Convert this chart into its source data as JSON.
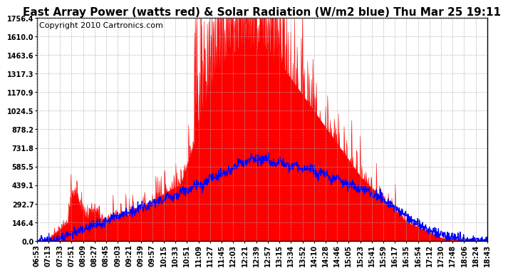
{
  "title": "East Array Power (watts red) & Solar Radiation (W/m2 blue) Thu Mar 25 19:11",
  "copyright": "Copyright 2010 Cartronics.com",
  "background_color": "#ffffff",
  "plot_bg_color": "#ffffff",
  "grid_color": "#aaaaaa",
  "y_ticks": [
    0.0,
    146.4,
    292.7,
    439.1,
    585.5,
    731.8,
    878.2,
    1024.5,
    1170.9,
    1317.3,
    1463.6,
    1610.0,
    1756.4
  ],
  "ymax": 1756.4,
  "ymin": 0.0,
  "x_labels": [
    "06:53",
    "07:13",
    "07:33",
    "07:51",
    "08:09",
    "08:27",
    "08:45",
    "09:03",
    "09:21",
    "09:39",
    "09:57",
    "10:15",
    "10:33",
    "10:51",
    "11:09",
    "11:27",
    "11:45",
    "12:03",
    "12:21",
    "12:39",
    "12:57",
    "13:15",
    "13:34",
    "13:52",
    "14:10",
    "14:28",
    "14:46",
    "15:05",
    "15:23",
    "15:41",
    "15:59",
    "16:17",
    "16:35",
    "16:54",
    "17:12",
    "17:30",
    "17:48",
    "18:06",
    "18:24",
    "18:43"
  ],
  "red_color": "#ff0000",
  "blue_color": "#0000ff",
  "title_fontsize": 11,
  "copyright_fontsize": 8,
  "tick_fontsize": 7,
  "n_points": 1200
}
